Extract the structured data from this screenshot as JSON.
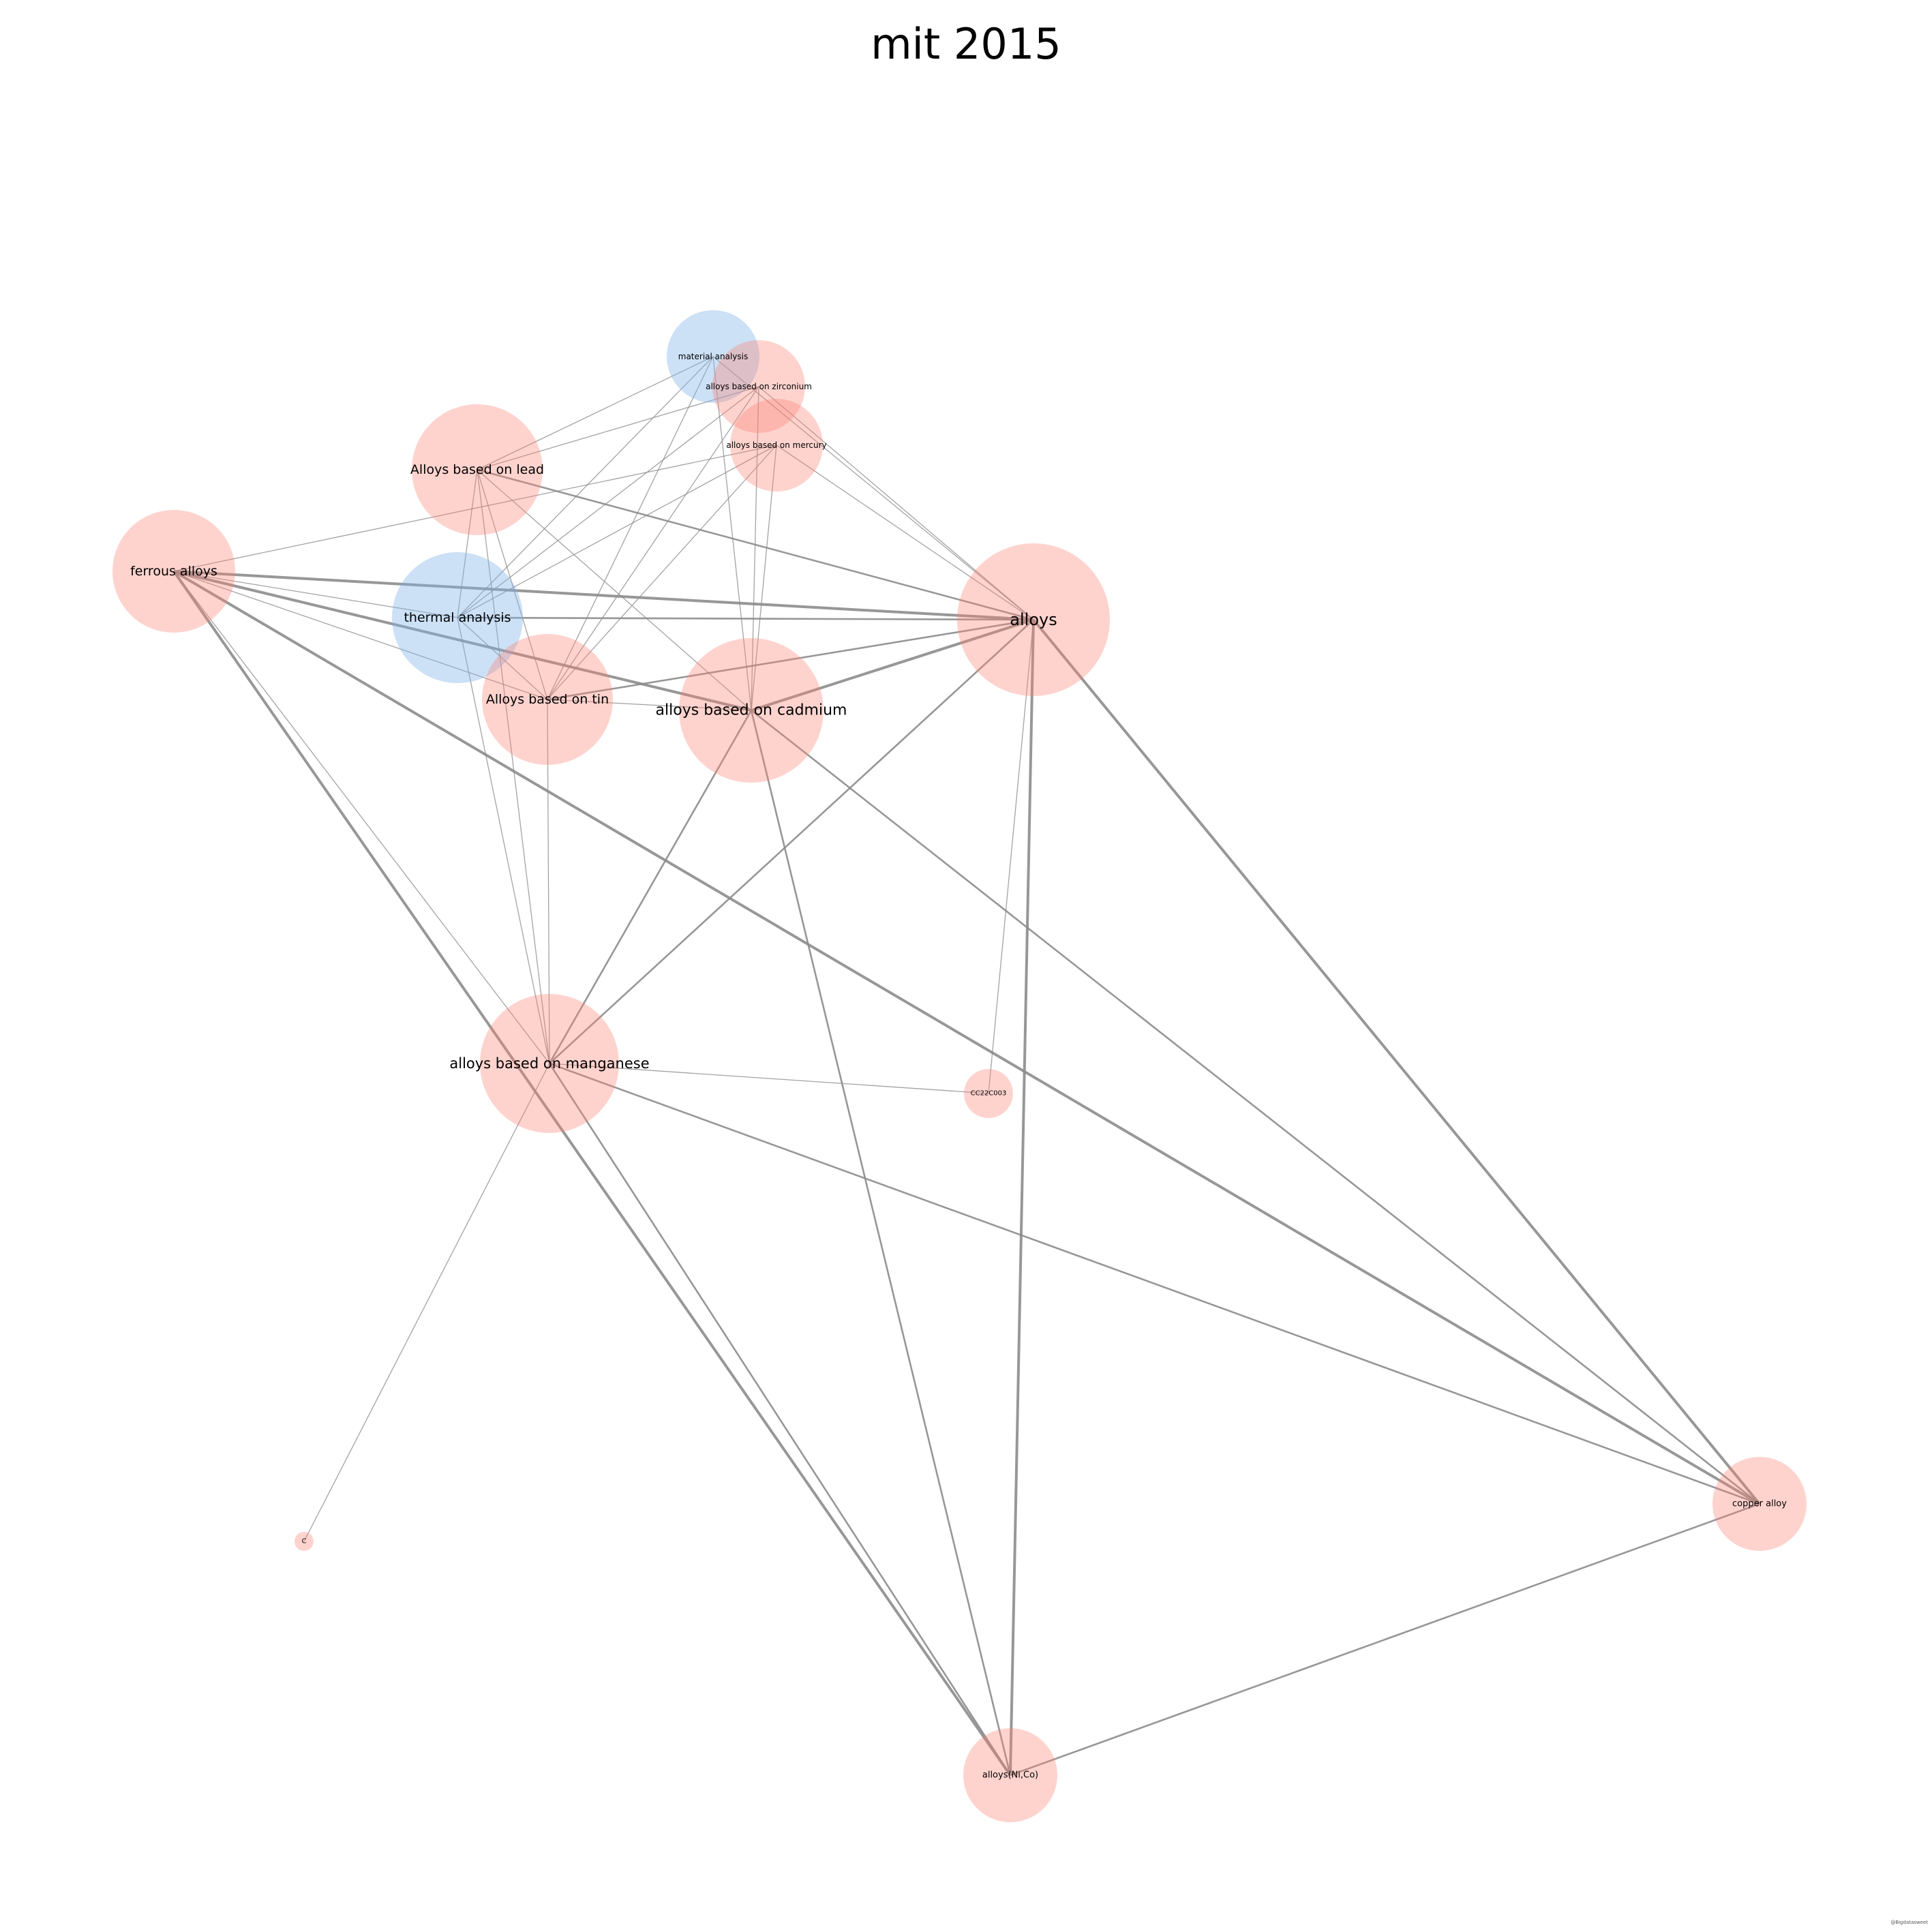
{
  "title": "mit 2015",
  "credit": "@Bigdatasweet",
  "colors": {
    "material_node": "#fb8072",
    "analysis_node": "#80b1e8",
    "edge": "#8c8c8c"
  },
  "graph": {
    "nodes": [
      {
        "id": "material-analysis",
        "label": "material analysis",
        "group": "analysis"
      },
      {
        "id": "alloys-based-on-zirconium",
        "label": "alloys based on zirconium",
        "group": "material"
      },
      {
        "id": "alloys-based-on-mercury",
        "label": "alloys based on mercury",
        "group": "material"
      },
      {
        "id": "alloys-based-on-lead",
        "label": "Alloys based on lead",
        "group": "material"
      },
      {
        "id": "ferrous-alloys",
        "label": "ferrous alloys",
        "group": "material"
      },
      {
        "id": "thermal-analysis",
        "label": "thermal analysis",
        "group": "analysis"
      },
      {
        "id": "alloys",
        "label": "alloys",
        "group": "material"
      },
      {
        "id": "alloys-based-on-tin",
        "label": "Alloys based on tin",
        "group": "material"
      },
      {
        "id": "alloys-based-on-cadmium",
        "label": "alloys based on cadmium",
        "group": "material"
      },
      {
        "id": "alloys-based-on-manganese",
        "label": "alloys based on manganese",
        "group": "material"
      },
      {
        "id": "cc22c003",
        "label": "CC22C003",
        "group": "material"
      },
      {
        "id": "c",
        "label": "C",
        "group": "material"
      },
      {
        "id": "copper-alloy",
        "label": "copper alloy",
        "group": "material"
      },
      {
        "id": "alloys-ni-co",
        "label": "alloys(Ni,Co)",
        "group": "material"
      }
    ],
    "edges": [
      {
        "source": "material-analysis",
        "target": "alloys-based-on-lead",
        "weight": 1
      },
      {
        "source": "material-analysis",
        "target": "thermal-analysis",
        "weight": 1
      },
      {
        "source": "material-analysis",
        "target": "alloys-based-on-tin",
        "weight": 1
      },
      {
        "source": "material-analysis",
        "target": "alloys-based-on-cadmium",
        "weight": 1
      },
      {
        "source": "material-analysis",
        "target": "alloys",
        "weight": 1
      },
      {
        "source": "alloys-based-on-zirconium",
        "target": "alloys-based-on-lead",
        "weight": 1
      },
      {
        "source": "alloys-based-on-zirconium",
        "target": "thermal-analysis",
        "weight": 1
      },
      {
        "source": "alloys-based-on-zirconium",
        "target": "alloys-based-on-tin",
        "weight": 1
      },
      {
        "source": "alloys-based-on-zirconium",
        "target": "alloys-based-on-cadmium",
        "weight": 1
      },
      {
        "source": "alloys-based-on-zirconium",
        "target": "alloys",
        "weight": 1
      },
      {
        "source": "alloys-based-on-mercury",
        "target": "ferrous-alloys",
        "weight": 1
      },
      {
        "source": "alloys-based-on-mercury",
        "target": "thermal-analysis",
        "weight": 1
      },
      {
        "source": "alloys-based-on-mercury",
        "target": "alloys-based-on-tin",
        "weight": 1
      },
      {
        "source": "alloys-based-on-mercury",
        "target": "alloys-based-on-cadmium",
        "weight": 1
      },
      {
        "source": "alloys-based-on-mercury",
        "target": "alloys",
        "weight": 1
      },
      {
        "source": "alloys-based-on-lead",
        "target": "alloys",
        "weight": 2
      },
      {
        "source": "alloys-based-on-lead",
        "target": "thermal-analysis",
        "weight": 1
      },
      {
        "source": "alloys-based-on-lead",
        "target": "alloys-based-on-tin",
        "weight": 1
      },
      {
        "source": "alloys-based-on-lead",
        "target": "alloys-based-on-cadmium",
        "weight": 1
      },
      {
        "source": "alloys-based-on-lead",
        "target": "alloys-based-on-manganese",
        "weight": 1
      },
      {
        "source": "ferrous-alloys",
        "target": "alloys",
        "weight": 3
      },
      {
        "source": "ferrous-alloys",
        "target": "thermal-analysis",
        "weight": 1
      },
      {
        "source": "ferrous-alloys",
        "target": "alloys-based-on-tin",
        "weight": 1
      },
      {
        "source": "ferrous-alloys",
        "target": "alloys-based-on-cadmium",
        "weight": 3
      },
      {
        "source": "ferrous-alloys",
        "target": "alloys-based-on-manganese",
        "weight": 1
      },
      {
        "source": "ferrous-alloys",
        "target": "copper-alloy",
        "weight": 3
      },
      {
        "source": "ferrous-alloys",
        "target": "alloys-ni-co",
        "weight": 3
      },
      {
        "source": "thermal-analysis",
        "target": "alloys",
        "weight": 2
      },
      {
        "source": "thermal-analysis",
        "target": "alloys-based-on-tin",
        "weight": 1
      },
      {
        "source": "thermal-analysis",
        "target": "alloys-based-on-manganese",
        "weight": 1
      },
      {
        "source": "alloys",
        "target": "alloys-based-on-cadmium",
        "weight": 3
      },
      {
        "source": "alloys",
        "target": "alloys-based-on-tin",
        "weight": 2
      },
      {
        "source": "alloys",
        "target": "alloys-based-on-manganese",
        "weight": 2
      },
      {
        "source": "alloys",
        "target": "cc22c003",
        "weight": 1
      },
      {
        "source": "alloys",
        "target": "copper-alloy",
        "weight": 3
      },
      {
        "source": "alloys",
        "target": "alloys-ni-co",
        "weight": 3
      },
      {
        "source": "alloys-based-on-tin",
        "target": "alloys-based-on-cadmium",
        "weight": 1
      },
      {
        "source": "alloys-based-on-tin",
        "target": "alloys-based-on-manganese",
        "weight": 1
      },
      {
        "source": "alloys-based-on-cadmium",
        "target": "alloys-based-on-manganese",
        "weight": 2
      },
      {
        "source": "alloys-based-on-cadmium",
        "target": "copper-alloy",
        "weight": 2
      },
      {
        "source": "alloys-based-on-cadmium",
        "target": "alloys-ni-co",
        "weight": 2
      },
      {
        "source": "alloys-based-on-manganese",
        "target": "cc22c003",
        "weight": 1
      },
      {
        "source": "alloys-based-on-manganese",
        "target": "c",
        "weight": 1
      },
      {
        "source": "alloys-based-on-manganese",
        "target": "copper-alloy",
        "weight": 2
      },
      {
        "source": "alloys-based-on-manganese",
        "target": "alloys-ni-co",
        "weight": 2
      },
      {
        "source": "copper-alloy",
        "target": "alloys-ni-co",
        "weight": 2
      }
    ]
  }
}
